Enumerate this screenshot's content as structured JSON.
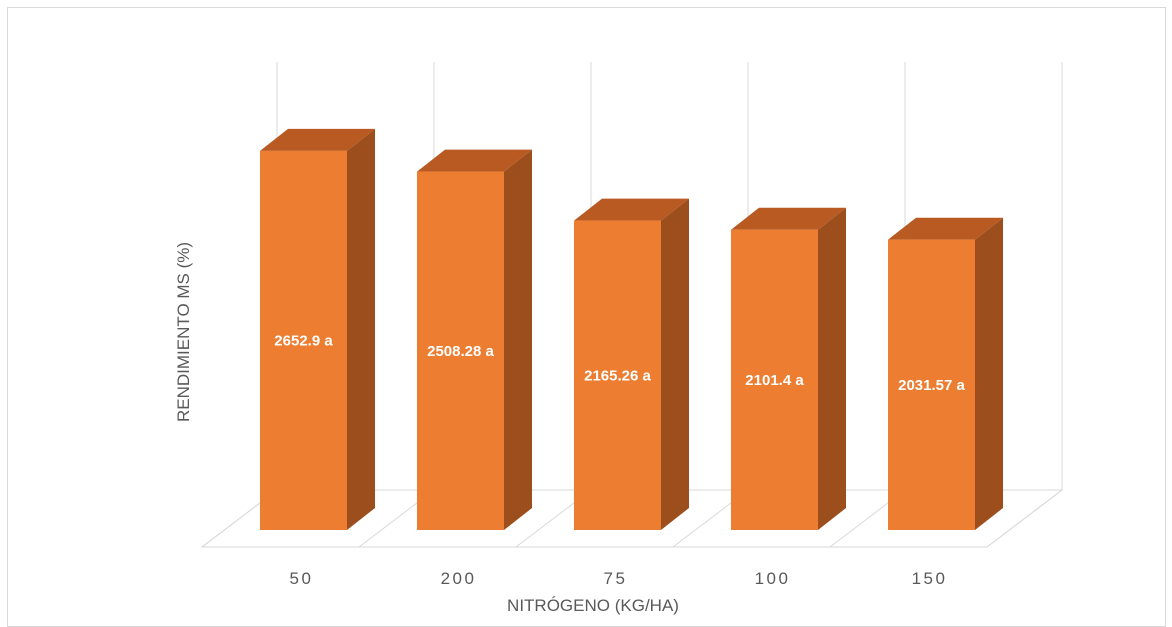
{
  "chart_data": {
    "type": "bar",
    "style": "3d-column",
    "categories": [
      "50",
      "200",
      "75",
      "100",
      "150"
    ],
    "values": [
      2652.9,
      2508.28,
      2165.26,
      2101.4,
      2031.57
    ],
    "data_labels": [
      "2652.9 a",
      "2508.28 a",
      "2165.26 a",
      "2101.4 a",
      "2031.57 a"
    ],
    "title": "",
    "xlabel": "NITRÓGENO (KG/HA)",
    "ylabel": "RENDIMIENTO MS (%)",
    "ylim": [
      0,
      3000
    ],
    "grid": true,
    "legend": "none",
    "colors": {
      "front": "#ED7D31",
      "side": "#9C4E1C",
      "top": "#B85A22",
      "grid": "#d9d9d9",
      "text": "#595959"
    }
  }
}
